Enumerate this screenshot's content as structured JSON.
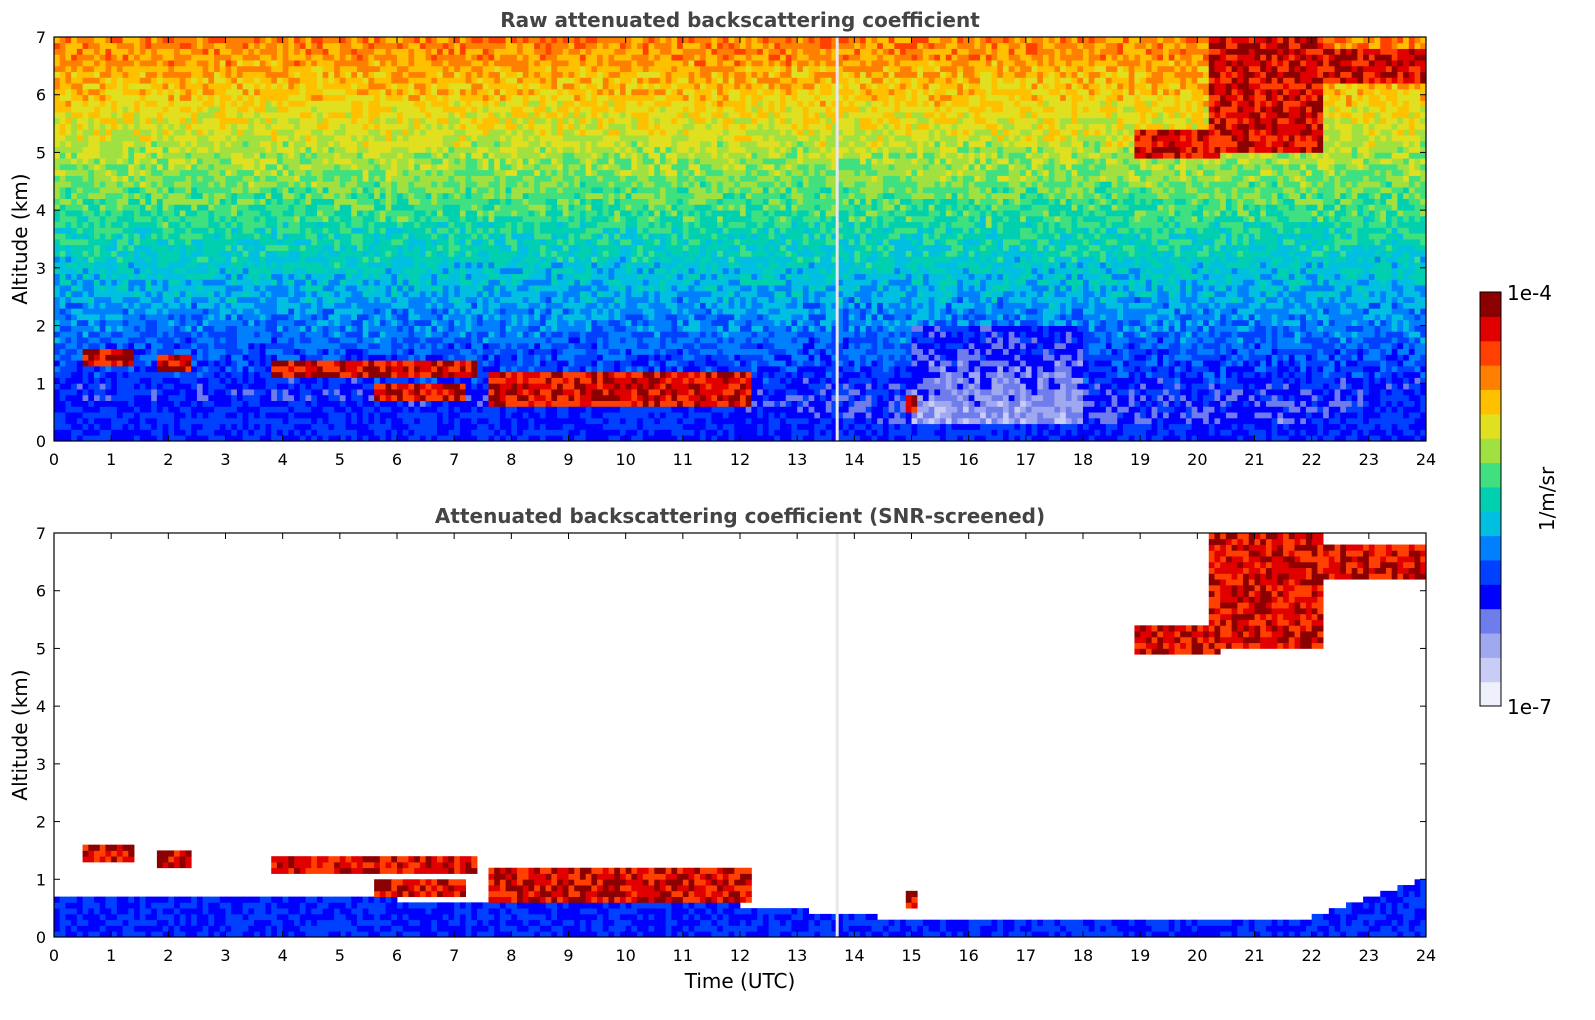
{
  "chart_data": [
    {
      "type": "heatmap",
      "title": "Raw attenuated backscattering coefficient",
      "xlabel": "",
      "ylabel": "Altitude (km)",
      "xlim": [
        0,
        24
      ],
      "ylim": [
        0,
        7
      ],
      "x_ticks": [
        "0",
        "1",
        "2",
        "3",
        "4",
        "5",
        "6",
        "7",
        "8",
        "9",
        "10",
        "11",
        "12",
        "13",
        "14",
        "15",
        "16",
        "17",
        "18",
        "19",
        "20",
        "21",
        "22",
        "23",
        "24"
      ],
      "y_ticks": [
        "0",
        "1",
        "2",
        "3",
        "4",
        "5",
        "6",
        "7"
      ],
      "mode": "raw",
      "data_gap_hours": [
        13.7
      ],
      "boundary_layer_top_km": [
        [
          0,
          0.75
        ],
        [
          4,
          0.7
        ],
        [
          8,
          0.6
        ],
        [
          12,
          0.55
        ],
        [
          15,
          0.3
        ],
        [
          22,
          0.35
        ],
        [
          24,
          1.0
        ]
      ],
      "cloud_layers": [
        {
          "x": [
            0.45,
            1.35
          ],
          "y": [
            1.35,
            1.55
          ]
        },
        {
          "x": [
            1.8,
            2.4
          ],
          "y": [
            1.25,
            1.5
          ]
        },
        {
          "x": [
            3.8,
            7.4
          ],
          "y": [
            1.15,
            1.45
          ]
        },
        {
          "x": [
            5.6,
            7.2
          ],
          "y": [
            0.7,
            1.0
          ]
        },
        {
          "x": [
            7.6,
            12.2
          ],
          "y": [
            0.65,
            1.2
          ]
        },
        {
          "x": [
            14.9,
            15.1
          ],
          "y": [
            0.5,
            0.8
          ]
        },
        {
          "x": [
            18.9,
            20.4
          ],
          "y": [
            4.9,
            5.4
          ]
        },
        {
          "x": [
            20.2,
            22.2
          ],
          "y": [
            5.0,
            7.0
          ]
        },
        {
          "x": [
            22.2,
            24.0
          ],
          "y": [
            6.2,
            6.8
          ]
        }
      ]
    },
    {
      "type": "heatmap",
      "title": "Attenuated backscattering coefficient (SNR-screened)",
      "xlabel": "Time (UTC)",
      "ylabel": "Altitude (km)",
      "xlim": [
        0,
        24
      ],
      "ylim": [
        0,
        7
      ],
      "x_ticks": [
        "0",
        "1",
        "2",
        "3",
        "4",
        "5",
        "6",
        "7",
        "8",
        "9",
        "10",
        "11",
        "12",
        "13",
        "14",
        "15",
        "16",
        "17",
        "18",
        "19",
        "20",
        "21",
        "22",
        "23",
        "24"
      ],
      "y_ticks": [
        "0",
        "1",
        "2",
        "3",
        "4",
        "5",
        "6",
        "7"
      ],
      "mode": "screened",
      "data_gap_hours": [
        13.7
      ],
      "boundary_layer_top_km": [
        [
          0,
          0.75
        ],
        [
          4,
          0.7
        ],
        [
          8,
          0.6
        ],
        [
          12,
          0.55
        ],
        [
          15,
          0.3
        ],
        [
          22,
          0.35
        ],
        [
          24,
          1.0
        ]
      ],
      "cloud_layers": [
        {
          "x": [
            0.45,
            1.35
          ],
          "y": [
            1.35,
            1.55
          ]
        },
        {
          "x": [
            1.8,
            2.4
          ],
          "y": [
            1.25,
            1.5
          ]
        },
        {
          "x": [
            3.8,
            7.4
          ],
          "y": [
            1.15,
            1.45
          ]
        },
        {
          "x": [
            5.6,
            7.2
          ],
          "y": [
            0.7,
            1.0
          ]
        },
        {
          "x": [
            7.6,
            12.2
          ],
          "y": [
            0.65,
            1.2
          ]
        },
        {
          "x": [
            14.9,
            15.1
          ],
          "y": [
            0.5,
            0.8
          ]
        },
        {
          "x": [
            18.9,
            20.4
          ],
          "y": [
            4.9,
            5.4
          ]
        },
        {
          "x": [
            20.2,
            22.2
          ],
          "y": [
            5.0,
            7.0
          ]
        },
        {
          "x": [
            22.2,
            24.0
          ],
          "y": [
            6.2,
            6.8
          ]
        }
      ]
    }
  ],
  "colorbar": {
    "max_label": "1e-4",
    "min_label": "1e-7",
    "unit_label": "1/m/sr",
    "colors": [
      "#eef0fc",
      "#c9cdf5",
      "#a0a8ef",
      "#6f7cec",
      "#0000ff",
      "#0040ff",
      "#0080ff",
      "#00bfe0",
      "#00d0b0",
      "#40e080",
      "#a0e040",
      "#e0e020",
      "#ffc000",
      "#ff8000",
      "#ff4000",
      "#e00000",
      "#8b0000"
    ]
  }
}
